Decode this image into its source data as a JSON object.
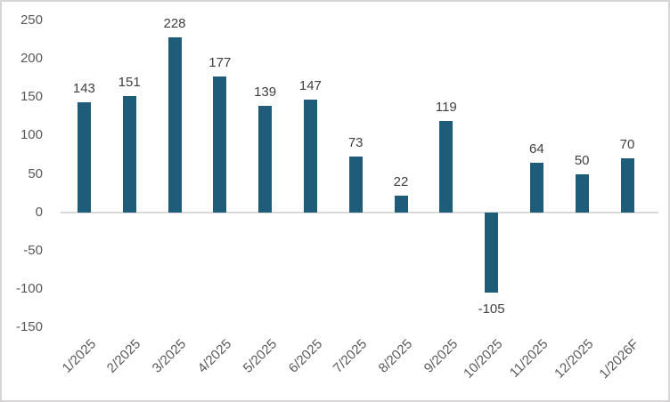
{
  "chart_data": {
    "type": "bar",
    "title": "",
    "xlabel": "",
    "ylabel": "",
    "categories": [
      "1/2025",
      "2/2025",
      "3/2025",
      "4/2025",
      "5/2025",
      "6/2025",
      "7/2025",
      "8/2025",
      "9/2025",
      "10/2025",
      "11/2025",
      "12/2025",
      "1/2026F"
    ],
    "values": [
      143,
      151,
      228,
      177,
      139,
      147,
      73,
      22,
      119,
      -105,
      64,
      50,
      70
    ],
    "ylim": [
      -150,
      250
    ],
    "yticks": [
      250,
      200,
      150,
      100,
      50,
      0,
      -50,
      -100,
      -150
    ],
    "grid": false,
    "legend": false,
    "data_labels": true,
    "x_labels_rotated_degrees": 45,
    "colors": {
      "bar": "#1e5c7a",
      "zero_line": "#d9d9d9",
      "axis_text": "#595959",
      "data_label_text": "#404040",
      "frame_border": "#d7d5d5",
      "background": "#ffffff"
    }
  }
}
